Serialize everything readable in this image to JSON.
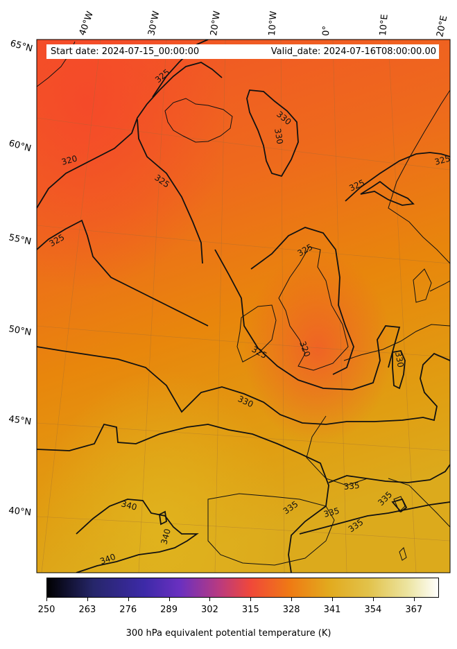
{
  "header": {
    "start_date": "Start date: 2024-07-15_00:00:00",
    "valid_date": "Valid_date: 2024-07-16T08:00:00.00"
  },
  "longitude_labels": [
    "40°W",
    "30°W",
    "20°W",
    "10°W",
    "0°",
    "10°E",
    "20°E"
  ],
  "latitude_labels": [
    "65°N",
    "60°N",
    "55°N",
    "50°N",
    "45°N",
    "40°N"
  ],
  "contour_labels": [
    "325",
    "325",
    "330",
    "330",
    "320",
    "325",
    "325",
    "325",
    "325",
    "325",
    "320",
    "325",
    "330",
    "330",
    "335",
    "335",
    "335",
    "335",
    "335",
    "340",
    "340",
    "340"
  ],
  "colorbar": {
    "ticks": [
      "250",
      "263",
      "276",
      "289",
      "302",
      "315",
      "328",
      "341",
      "354",
      "367"
    ],
    "label": "300 hPa equivalent potential temperature (K)",
    "colormap": "CMRmap",
    "vmin": 250,
    "vmax": 375
  },
  "colors": {
    "field_north": "#f05a28",
    "field_mid": "#e8800a",
    "field_south": "#dca21a",
    "contour": "#111111"
  }
}
